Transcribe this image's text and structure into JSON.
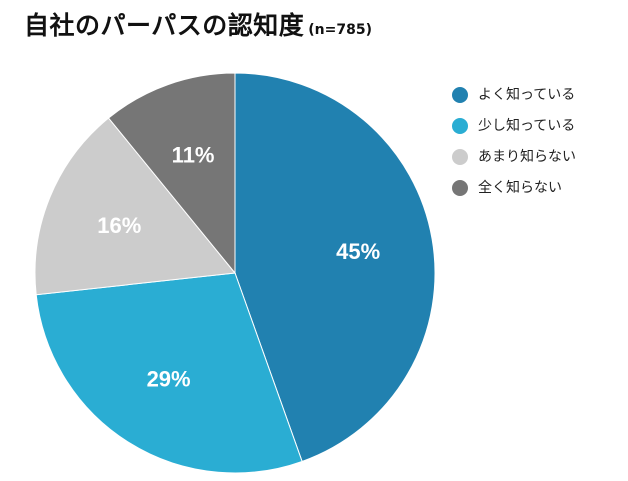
{
  "title": "自社のパーパスの認知度",
  "subtitle": "(n=785)",
  "chart_data": {
    "type": "pie",
    "title": "自社のパーパスの認知度",
    "subtitle": "(n=785)",
    "legend_position": "right",
    "slices": [
      {
        "label": "よく知っている",
        "value": 45,
        "display": "45%",
        "color": "#2181b0"
      },
      {
        "label": "少し知っている",
        "value": 29,
        "display": "29%",
        "color": "#2aadd3"
      },
      {
        "label": "あまり知らない",
        "value": 16,
        "display": "16%",
        "color": "#cccccc"
      },
      {
        "label": "全く知らない",
        "value": 11,
        "display": "11%",
        "color": "#767676"
      }
    ]
  }
}
